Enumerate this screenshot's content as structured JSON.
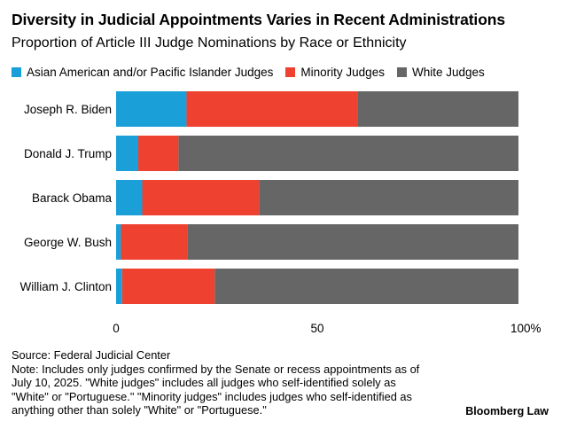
{
  "title": "Diversity in Judicial Appointments Varies in Recent Administrations",
  "subtitle": "Proportion of Article III Judge Nominations by Race or Ethnicity",
  "chart_data": {
    "type": "bar",
    "orientation": "horizontal",
    "stacked": true,
    "categories": [
      "Joseph R. Biden",
      "Donald J. Trump",
      "Barack Obama",
      "George W. Bush",
      "William J. Clinton"
    ],
    "series": [
      {
        "name": "Asian American and/or Pacific Islander Judges",
        "color": "#1a9fd9",
        "values": [
          17.5,
          5.5,
          6.5,
          1.2,
          1.5
        ]
      },
      {
        "name": "Minority Judges",
        "color": "#ef4130",
        "values": [
          42.5,
          10.0,
          29.0,
          16.5,
          23.0
        ]
      },
      {
        "name": "White Judges",
        "color": "#666666",
        "values": [
          40.0,
          84.5,
          64.5,
          82.3,
          75.5
        ]
      }
    ],
    "xlim": [
      0,
      100
    ],
    "xticks": [
      "0",
      "50",
      "100%"
    ],
    "xtick_values": [
      0,
      50,
      100
    ],
    "legend_position": "top-left",
    "grid": false
  },
  "footer": {
    "source": "Source: Federal Judicial Center",
    "note": "Note: Includes only judges confirmed by the Senate or recess appointments as of July 10, 2025. \"White judges\" includes all judges who self-identified solely as \"White\" or \"Portuguese.\" \"Minority judges\" includes judges who self-identified as anything other than solely \"White\" or \"Portuguese.\"",
    "brand": "Bloomberg Law"
  }
}
